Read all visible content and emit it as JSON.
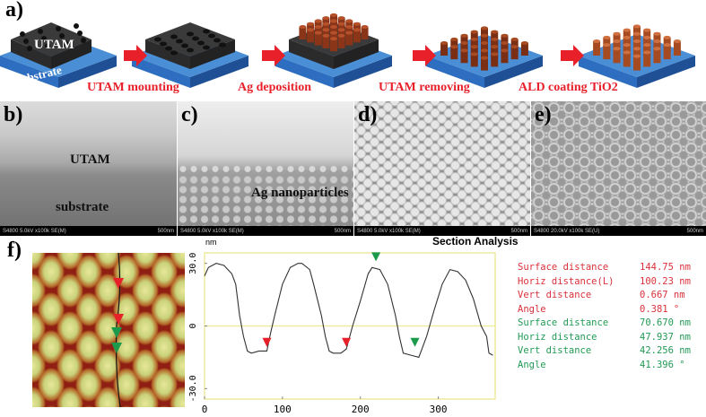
{
  "panel_a": {
    "label": "a)",
    "utam_label": "UTAM",
    "substrate_label": "substrate",
    "steps": [
      "UTAM mounting",
      "Ag deposition",
      "UTAM removing",
      "ALD coating TiO2"
    ]
  },
  "sem_panels": [
    {
      "label": "b)",
      "texts": [
        "UTAM",
        "substrate"
      ],
      "info": "S4800 5.0kV x100k SE(M)",
      "scale": "500nm"
    },
    {
      "label": "c)",
      "texts": [
        "Ag nanoparticles"
      ],
      "info": "S4800 5.0kV x100k SE(M)",
      "scale": "500nm"
    },
    {
      "label": "d)",
      "texts": [],
      "info": "S4800 5.0kV x100k SE(M)",
      "scale": "500nm"
    },
    {
      "label": "e)",
      "texts": [],
      "info": "S4800 20.0kV x100k SE(U)",
      "scale": "500nm"
    }
  ],
  "panel_f": {
    "label": "f)",
    "measurements": [
      {
        "name": "Surface distance",
        "value": "144.75 nm",
        "color": "red"
      },
      {
        "name": "Horiz distance(L)",
        "value": "100.23 nm",
        "color": "red"
      },
      {
        "name": "Vert distance",
        "value": "0.667 nm",
        "color": "red"
      },
      {
        "name": "Angle",
        "value": "0.381 °",
        "color": "red"
      },
      {
        "name": "Surface distance",
        "value": "70.670 nm",
        "color": "green"
      },
      {
        "name": "Horiz distance",
        "value": "47.937 nm",
        "color": "green"
      },
      {
        "name": "Vert distance",
        "value": "42.256 nm",
        "color": "green"
      },
      {
        "name": "Angle",
        "value": "41.396 °",
        "color": "green"
      }
    ]
  },
  "chart_data": {
    "type": "line",
    "title": "Section Analysis",
    "ylabel": "nm",
    "xlim": [
      0,
      373
    ],
    "ylim": [
      -35,
      35
    ],
    "xticks": [
      "0",
      "100",
      "200",
      "300"
    ],
    "xtick_values": [
      0,
      100,
      200,
      300
    ],
    "yticks": [
      "30.0",
      "0",
      "-30.0"
    ],
    "ytick_values": [
      30,
      0,
      -30
    ],
    "x": [
      0,
      5,
      15,
      25,
      35,
      40,
      45,
      50,
      55,
      60,
      70,
      80,
      85,
      90,
      100,
      110,
      120,
      125,
      135,
      140,
      150,
      155,
      160,
      165,
      175,
      182,
      190,
      200,
      210,
      215,
      225,
      235,
      245,
      250,
      255,
      265,
      275,
      285,
      295,
      305,
      315,
      325,
      335,
      345,
      355,
      362,
      365,
      370
    ],
    "y": [
      24,
      28,
      30,
      29,
      25,
      20,
      5,
      -5,
      -12,
      -13,
      -12,
      -12,
      -3,
      5,
      20,
      28,
      30,
      30,
      27,
      20,
      5,
      -5,
      -12,
      -13,
      -13,
      -11,
      0,
      12,
      25,
      28,
      27,
      20,
      5,
      -5,
      -13,
      -14,
      -15,
      -5,
      8,
      20,
      27,
      26,
      22,
      13,
      0,
      -5,
      -13,
      -14
    ],
    "markers": [
      {
        "x": 80,
        "y": -10,
        "color": "#e8202a"
      },
      {
        "x": 182,
        "y": -10,
        "color": "#e8202a"
      },
      {
        "x": 220,
        "y": 31,
        "color": "#1a9a4a"
      },
      {
        "x": 270,
        "y": -10,
        "color": "#1a9a4a"
      }
    ],
    "colors": {
      "line": "#333333",
      "frame": "#eeeaa0",
      "zero": "#eeeaa0"
    }
  }
}
